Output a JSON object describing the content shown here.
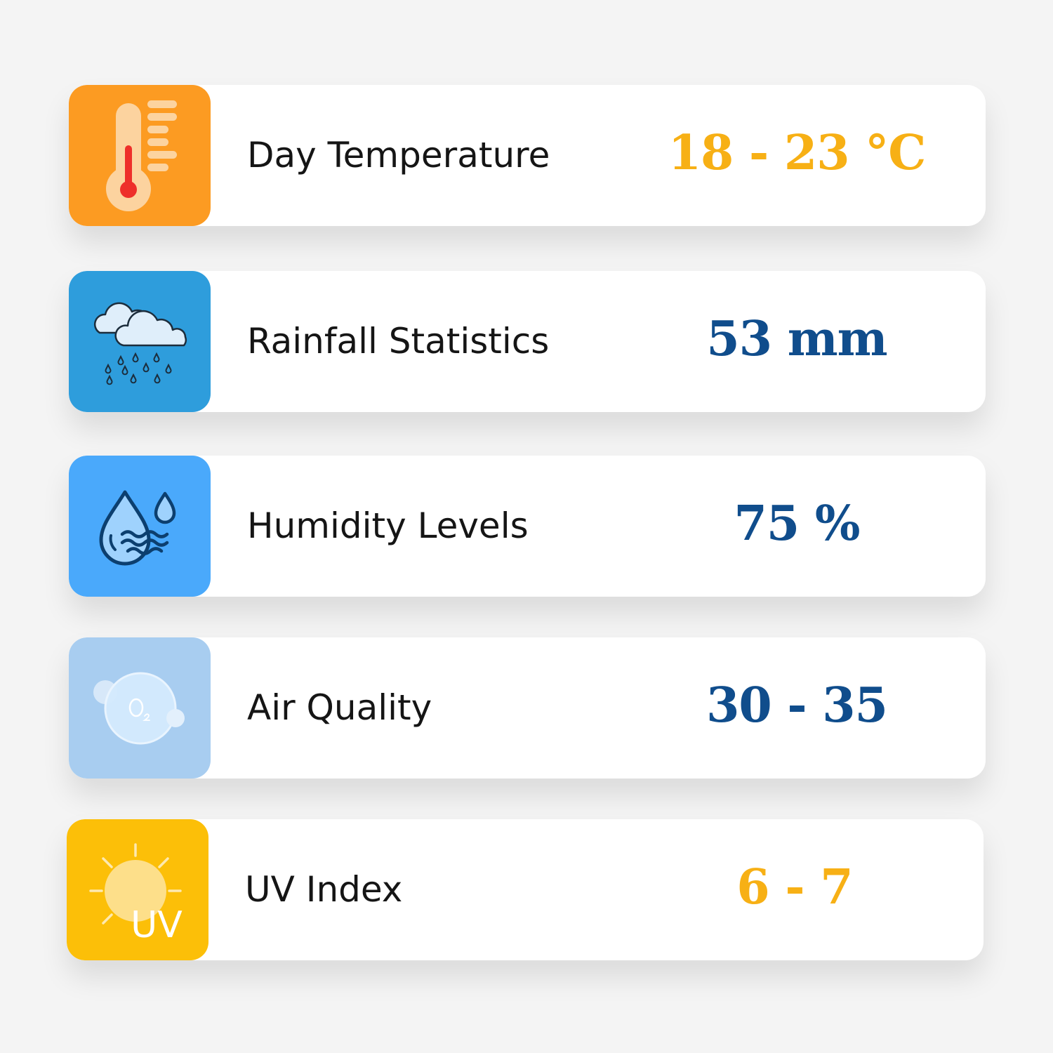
{
  "colors": {
    "page_background": "#f4f4f4",
    "card_background": "#ffffff",
    "value_orange": "#f7b015",
    "value_blue": "#104d8c"
  },
  "rows": [
    {
      "label": "Day Temperature",
      "value": "18 - 23 °C",
      "icon": "thermometer-icon",
      "icon_bg": "#fc9b22",
      "value_color": "orange"
    },
    {
      "label": "Rainfall Statistics",
      "value": "53 mm",
      "icon": "rain-cloud-icon",
      "icon_bg": "#2e9ddc",
      "value_color": "blue"
    },
    {
      "label": "Humidity Levels",
      "value": "75 %",
      "icon": "humidity-drops-icon",
      "icon_bg": "#4aa9fb",
      "value_color": "blue"
    },
    {
      "label": "Air Quality",
      "value": "30 - 35",
      "icon": "oxygen-bubble-icon",
      "icon_bg": "#a8cdf0",
      "value_color": "blue"
    },
    {
      "label": "UV Index",
      "value": "6 - 7",
      "icon": "uv-sun-icon",
      "icon_bg": "#fcbf08",
      "value_color": "orange",
      "icon_text": "UV"
    }
  ]
}
